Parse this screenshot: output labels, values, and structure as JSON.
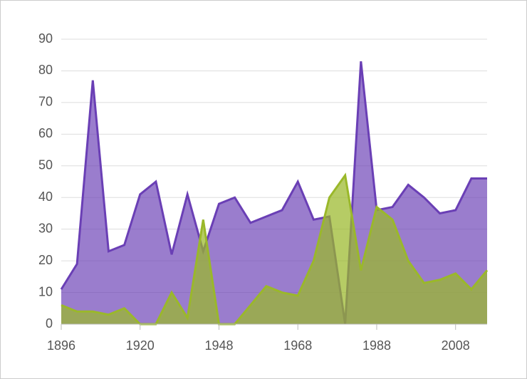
{
  "chart_data": {
    "type": "area",
    "categories": [
      "1896",
      null,
      null,
      null,
      null,
      "1920",
      null,
      null,
      null,
      null,
      "1948",
      null,
      null,
      null,
      null,
      "1968",
      null,
      null,
      null,
      null,
      "1988",
      null,
      null,
      null,
      null,
      "2008",
      null,
      null
    ],
    "series": [
      {
        "color": "#6a3fb5",
        "values": [
          11,
          19,
          77,
          23,
          25,
          41,
          45,
          22,
          41,
          23,
          38,
          40,
          32,
          34,
          36,
          45,
          33,
          34,
          0,
          83,
          36,
          37,
          44,
          40,
          35,
          36,
          46,
          46
        ]
      },
      {
        "color": "#9ab82a",
        "values": [
          6,
          4,
          4,
          3,
          5,
          0,
          0,
          10,
          2,
          33,
          0,
          0,
          6,
          12,
          10,
          9,
          20,
          40,
          47,
          17,
          37,
          33,
          20,
          13,
          14,
          16,
          11,
          17
        ]
      }
    ],
    "ylim": [
      0,
      90
    ],
    "yticks": [
      0,
      10,
      20,
      30,
      40,
      50,
      60,
      70,
      80,
      90
    ],
    "grid": true
  }
}
